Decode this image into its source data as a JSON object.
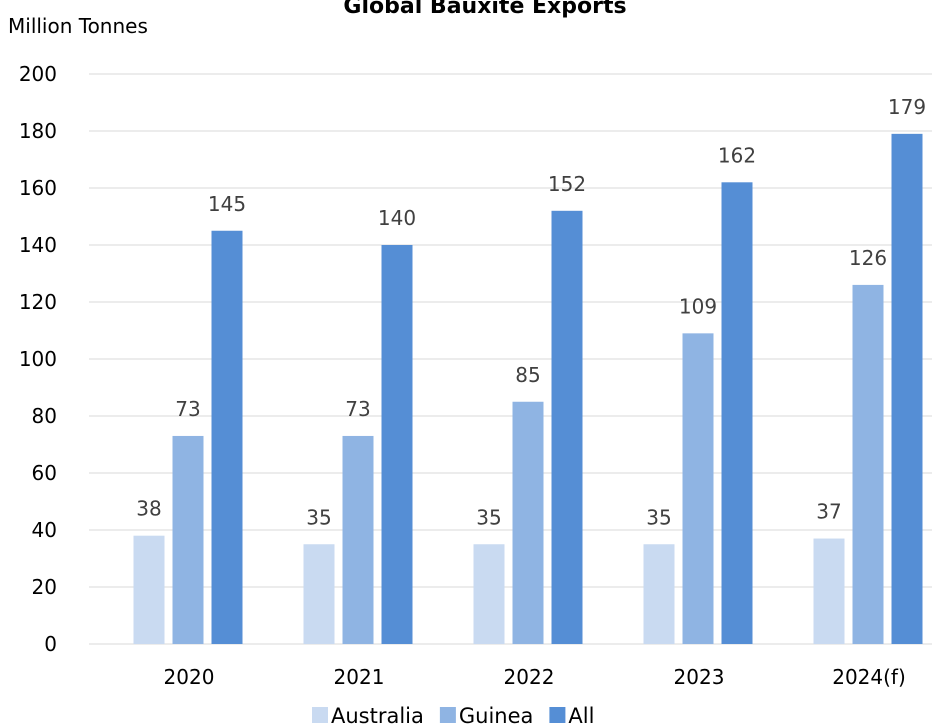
{
  "chart_data": {
    "type": "bar",
    "title": "Global Bauxite Exports",
    "ylabel": "Million Tonnes",
    "xlabel": "",
    "categories": [
      "2020",
      "2021",
      "2022",
      "2023",
      "2024(f)"
    ],
    "series": [
      {
        "name": "Australia",
        "color": "#c9daf1",
        "values": [
          38,
          35,
          35,
          35,
          37
        ]
      },
      {
        "name": "Guinea",
        "color": "#8fb4e3",
        "values": [
          73,
          73,
          85,
          109,
          126
        ]
      },
      {
        "name": "All",
        "color": "#558ed5",
        "values": [
          145,
          140,
          152,
          162,
          179
        ]
      }
    ],
    "ylim": [
      0,
      200
    ],
    "yticks": [
      0,
      20,
      40,
      60,
      80,
      100,
      120,
      140,
      160,
      180,
      200
    ],
    "grid": true,
    "legend": "bottom"
  }
}
